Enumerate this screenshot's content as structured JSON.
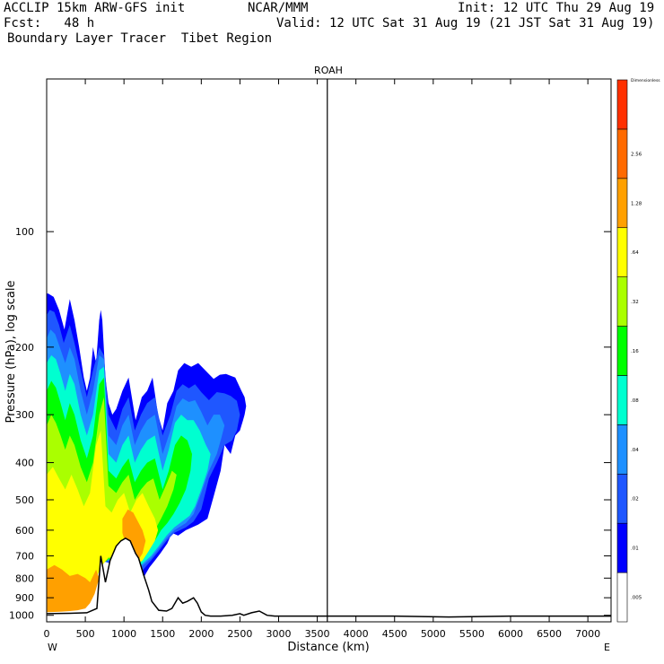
{
  "header": {
    "model": "ACCLIP 15km ARW-GFS init",
    "org": "NCAR/MMM",
    "init": "Init: 12 UTC Thu 29 Aug 19",
    "fcst": "Fcst:   48 h",
    "valid": "Valid: 12 UTC Sat 31 Aug 19 (21 JST Sat 31 Aug 19)",
    "subtitle": "Boundary Layer Tracer  Tibet Region"
  },
  "chart_data": {
    "type": "contour",
    "title": "ROAH",
    "xlabel": "Distance (km)",
    "ylabel": "Pressure (hPa), log scale",
    "x_left_label": "W",
    "x_right_label": "E",
    "xlim": [
      0,
      7300
    ],
    "ylim": [
      1040,
      40
    ],
    "y_scale": "log",
    "x_ticks": [
      0,
      500,
      1000,
      1500,
      2000,
      2500,
      3000,
      3500,
      4000,
      4500,
      5000,
      5500,
      6000,
      6500,
      7000
    ],
    "y_ticks": [
      100,
      200,
      300,
      400,
      500,
      600,
      700,
      800,
      900,
      1000
    ],
    "vertical_marker_x": 3630,
    "colorbar": {
      "unit_label": "Dimensionless",
      "levels": [
        ".005",
        ".01",
        ".02",
        ".04",
        ".08",
        ".16",
        ".32",
        ".64",
        "1.28",
        "2.56"
      ],
      "colors": [
        "#ffffff",
        "#0000ff",
        "#1f57ff",
        "#1e90ff",
        "#00ffd0",
        "#00ff00",
        "#aaff00",
        "#ffff00",
        "#ffa000",
        "#ff6a00",
        "#ff3000"
      ]
    },
    "terrain": {
      "x": [
        0,
        300,
        520,
        650,
        700,
        760,
        820,
        900,
        960,
        1020,
        1080,
        1150,
        1190,
        1250,
        1320,
        1360,
        1450,
        1550,
        1620,
        1700,
        1760,
        1820,
        1900,
        1950,
        2000,
        2050,
        2120,
        2250,
        2400,
        2500,
        2550,
        2650,
        2750,
        2850,
        2950,
        3100,
        3500,
        4500,
        5200,
        6000,
        7300
      ],
      "p": [
        990,
        988,
        985,
        960,
        700,
        820,
        720,
        660,
        640,
        630,
        640,
        690,
        710,
        780,
        860,
        920,
        970,
        975,
        960,
        900,
        930,
        920,
        900,
        930,
        980,
        1000,
        1005,
        1005,
        1000,
        990,
        1000,
        985,
        975,
        1000,
        1005,
        1005,
        1005,
        1005,
        1010,
        1005,
        1005
      ]
    },
    "fields": [
      {
        "level": ".01",
        "color": "#0000ff",
        "x": [
          0,
          20,
          90,
          160,
          230,
          300,
          360,
          420,
          480,
          520,
          560,
          600,
          640,
          680,
          700,
          720,
          760,
          800,
          850,
          900,
          980,
          1060,
          1150,
          1230,
          1300,
          1370,
          1440,
          1500,
          1560,
          1640,
          1700,
          1780,
          1870,
          1960,
          2070,
          2160,
          2240,
          2320,
          2440,
          2520,
          2560,
          2580,
          2560,
          2540,
          2500,
          2440,
          2380,
          2300,
          2250,
          2160,
          2080,
          1960,
          1800,
          1700,
          1620,
          1560,
          1470,
          1400,
          1330,
          1280,
          1200,
          1000,
          800,
          700,
          600,
          500,
          400,
          300,
          200,
          100,
          0
        ],
        "p": [
          145,
          145,
          148,
          160,
          180,
          150,
          170,
          200,
          240,
          260,
          240,
          200,
          220,
          170,
          160,
          170,
          240,
          280,
          300,
          290,
          260,
          240,
          310,
          270,
          260,
          240,
          300,
          330,
          280,
          260,
          230,
          220,
          225,
          220,
          232,
          242,
          236,
          235,
          240,
          260,
          270,
          285,
          300,
          310,
          330,
          340,
          380,
          360,
          420,
          490,
          560,
          580,
          600,
          620,
          610,
          650,
          690,
          720,
          750,
          780,
          840,
          800,
          730,
          700,
          820,
          870,
          880,
          930,
          950,
          960,
          970
        ]
      },
      {
        "level": ".02",
        "color": "#1f57ff",
        "x": [
          0,
          40,
          100,
          160,
          220,
          300,
          360,
          440,
          520,
          600,
          680,
          740,
          800,
          900,
          980,
          1060,
          1140,
          1220,
          1300,
          1400,
          1500,
          1600,
          1680,
          1760,
          1840,
          1920,
          2000,
          2100,
          2200,
          2300,
          2380,
          2460,
          2500,
          2460,
          2400,
          2300,
          2200,
          2100,
          2000,
          1900,
          1800,
          1650,
          1550,
          1450,
          1350,
          1250,
          1150,
          1000,
          800,
          700,
          550,
          400,
          250,
          100,
          0
        ],
        "p": [
          165,
          160,
          162,
          175,
          195,
          175,
          195,
          230,
          270,
          230,
          200,
          210,
          300,
          330,
          290,
          270,
          330,
          300,
          280,
          270,
          340,
          300,
          260,
          250,
          256,
          250,
          262,
          275,
          262,
          264,
          268,
          276,
          300,
          330,
          350,
          360,
          400,
          440,
          530,
          570,
          590,
          610,
          640,
          680,
          720,
          760,
          790,
          760,
          730,
          720,
          840,
          880,
          920,
          950,
          960
        ]
      },
      {
        "level": ".04",
        "color": "#1e90ff",
        "x": [
          0,
          50,
          110,
          170,
          240,
          300,
          360,
          440,
          520,
          600,
          680,
          740,
          800,
          900,
          980,
          1060,
          1140,
          1220,
          1300,
          1400,
          1500,
          1600,
          1680,
          1760,
          1840,
          1920,
          2000,
          2080,
          2160,
          2240,
          2300,
          2260,
          2200,
          2100,
          2000,
          1900,
          1800,
          1650,
          1550,
          1450,
          1350,
          1250,
          1150,
          1000,
          800,
          700,
          550,
          400,
          250,
          100,
          0
        ],
        "p": [
          190,
          180,
          185,
          200,
          220,
          200,
          215,
          260,
          300,
          260,
          210,
          215,
          340,
          360,
          320,
          300,
          360,
          330,
          310,
          300,
          380,
          330,
          285,
          272,
          278,
          275,
          295,
          320,
          300,
          300,
          320,
          345,
          380,
          420,
          480,
          545,
          575,
          600,
          630,
          670,
          710,
          740,
          770,
          740,
          720,
          730,
          850,
          890,
          920,
          950,
          960
        ]
      },
      {
        "level": ".08",
        "color": "#00ffd0",
        "x": [
          0,
          60,
          120,
          180,
          240,
          300,
          360,
          440,
          520,
          600,
          680,
          740,
          800,
          900,
          980,
          1060,
          1140,
          1220,
          1300,
          1400,
          1500,
          1580,
          1660,
          1740,
          1820,
          1900,
          1980,
          2060,
          2120,
          2080,
          2000,
          1920,
          1850,
          1750,
          1650,
          1550,
          1450,
          1350,
          1250,
          1150,
          1000,
          800,
          700,
          550,
          400,
          250,
          100,
          0
        ],
        "p": [
          220,
          210,
          215,
          235,
          260,
          235,
          250,
          300,
          340,
          300,
          230,
          225,
          380,
          400,
          360,
          340,
          400,
          370,
          350,
          340,
          420,
          370,
          315,
          300,
          310,
          310,
          330,
          360,
          380,
          420,
          470,
          520,
          550,
          570,
          590,
          620,
          660,
          700,
          730,
          760,
          730,
          715,
          735,
          860,
          900,
          930,
          950,
          960
        ]
      },
      {
        "level": ".16",
        "color": "#00ff00",
        "x": [
          0,
          60,
          120,
          180,
          240,
          300,
          360,
          440,
          520,
          600,
          680,
          740,
          800,
          900,
          980,
          1060,
          1140,
          1220,
          1300,
          1400,
          1500,
          1580,
          1660,
          1740,
          1820,
          1880,
          1860,
          1800,
          1720,
          1640,
          1560,
          1480,
          1400,
          1300,
          1200,
          1100,
          1000,
          800,
          700,
          550,
          400,
          250,
          100,
          0
        ],
        "p": [
          260,
          245,
          255,
          280,
          310,
          280,
          300,
          350,
          390,
          340,
          250,
          240,
          420,
          440,
          410,
          390,
          450,
          420,
          400,
          390,
          470,
          420,
          360,
          340,
          350,
          380,
          420,
          470,
          510,
          545,
          575,
          600,
          640,
          680,
          720,
          740,
          725,
          715,
          740,
          870,
          910,
          935,
          955,
          965
        ]
      },
      {
        "level": ".32",
        "color": "#aaff00",
        "x": [
          0,
          60,
          120,
          180,
          240,
          300,
          360,
          440,
          520,
          600,
          680,
          740,
          800,
          900,
          980,
          1060,
          1140,
          1220,
          1300,
          1380,
          1460,
          1540,
          1620,
          1680,
          1640,
          1560,
          1480,
          1400,
          1300,
          1200,
          1100,
          1000,
          800,
          700,
          550,
          400,
          250,
          100,
          0
        ],
        "p": [
          320,
          300,
          315,
          340,
          370,
          340,
          360,
          410,
          450,
          400,
          300,
          270,
          460,
          480,
          450,
          430,
          500,
          470,
          450,
          440,
          500,
          460,
          420,
          430,
          470,
          520,
          560,
          600,
          650,
          700,
          730,
          715,
          710,
          745,
          880,
          920,
          940,
          958,
          968
        ]
      },
      {
        "level": ".64",
        "color": "#ffff00",
        "x": [
          0,
          80,
          160,
          240,
          320,
          400,
          480,
          560,
          640,
          700,
          760,
          840,
          920,
          1000,
          1080,
          1160,
          1240,
          1320,
          1400,
          1440,
          1400,
          1320,
          1240,
          1160,
          1080,
          1000,
          800,
          700,
          550,
          400,
          250,
          100,
          0
        ],
        "p": [
          430,
          410,
          440,
          470,
          430,
          470,
          520,
          480,
          360,
          330,
          520,
          540,
          500,
          480,
          540,
          500,
          480,
          520,
          560,
          600,
          640,
          680,
          720,
          740,
          720,
          705,
          705,
          750,
          890,
          925,
          945,
          960,
          970
        ]
      },
      {
        "level": "1.28",
        "color": "#ffa000",
        "x": [
          0,
          100,
          200,
          300,
          400,
          500,
          560,
          600,
          640,
          680,
          620,
          560,
          500,
          400,
          300,
          200,
          100,
          0
        ],
        "p": [
          760,
          740,
          760,
          790,
          780,
          800,
          820,
          790,
          760,
          800,
          880,
          930,
          960,
          970,
          975,
          978,
          980,
          982
        ]
      },
      {
        "level": "1.28",
        "color": "#ffa000",
        "x": [
          980,
          1050,
          1120,
          1180,
          1240,
          1280,
          1240,
          1180,
          1100,
          1020,
          980
        ],
        "p": [
          560,
          530,
          540,
          570,
          600,
          640,
          690,
          720,
          680,
          650,
          610
        ]
      }
    ]
  }
}
